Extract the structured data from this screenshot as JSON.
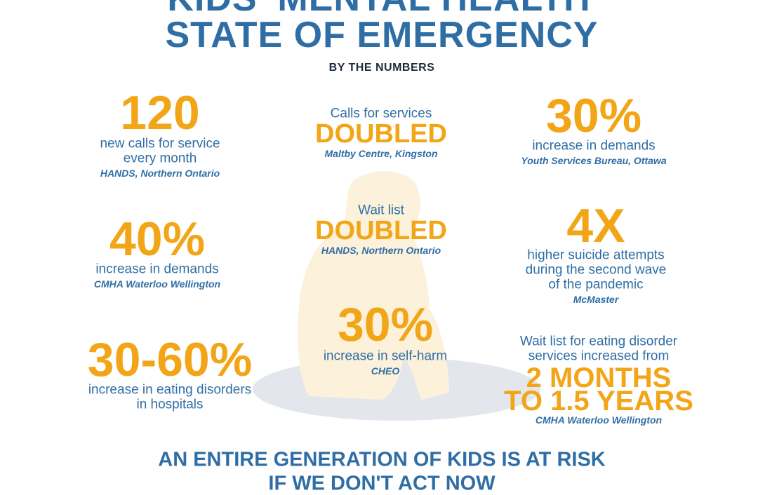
{
  "header": {
    "title_lines": [
      "KIDS' MENTAL HEALTH",
      "STATE OF EMERGENCY"
    ],
    "subtitle": "BY THE NUMBERS"
  },
  "stats": [
    {
      "figure": "120",
      "text_lines": [
        "new calls for service",
        "every month"
      ],
      "source": "HANDS, Northern Ontario"
    },
    {
      "text_lines": [
        "Calls for services"
      ],
      "figure": "DOUBLED",
      "source": "Maltby Centre, Kingston"
    },
    {
      "figure": "30%",
      "text_lines": [
        "increase in demands"
      ],
      "source": "Youth Services Bureau, Ottawa"
    },
    {
      "figure": "40%",
      "text_lines": [
        "increase in demands"
      ],
      "source": "CMHA Waterloo Wellington"
    },
    {
      "text_lines": [
        "Wait list"
      ],
      "figure": "DOUBLED",
      "source": "HANDS, Northern Ontario"
    },
    {
      "figure": "4X",
      "text_lines": [
        "higher suicide attempts",
        "during the second wave",
        "of the pandemic"
      ],
      "source": "McMaster"
    },
    {
      "figure": "30-60%",
      "text_lines": [
        "increase in eating disorders",
        "in hospitals"
      ]
    },
    {
      "figure": "30%",
      "text_lines": [
        "increase in self-harm"
      ],
      "source": "CHEO"
    },
    {
      "text_lines": [
        "Wait list for eating disorder",
        "services increased from"
      ],
      "figure_lines": [
        "2 MONTHS",
        "TO 1.5 YEARS"
      ],
      "source": "CMHA Waterloo Wellington"
    }
  ],
  "footer": {
    "lines": [
      "AN ENTIRE GENERATION OF KIDS IS AT RISK",
      "IF WE DON'T ACT NOW"
    ]
  }
}
